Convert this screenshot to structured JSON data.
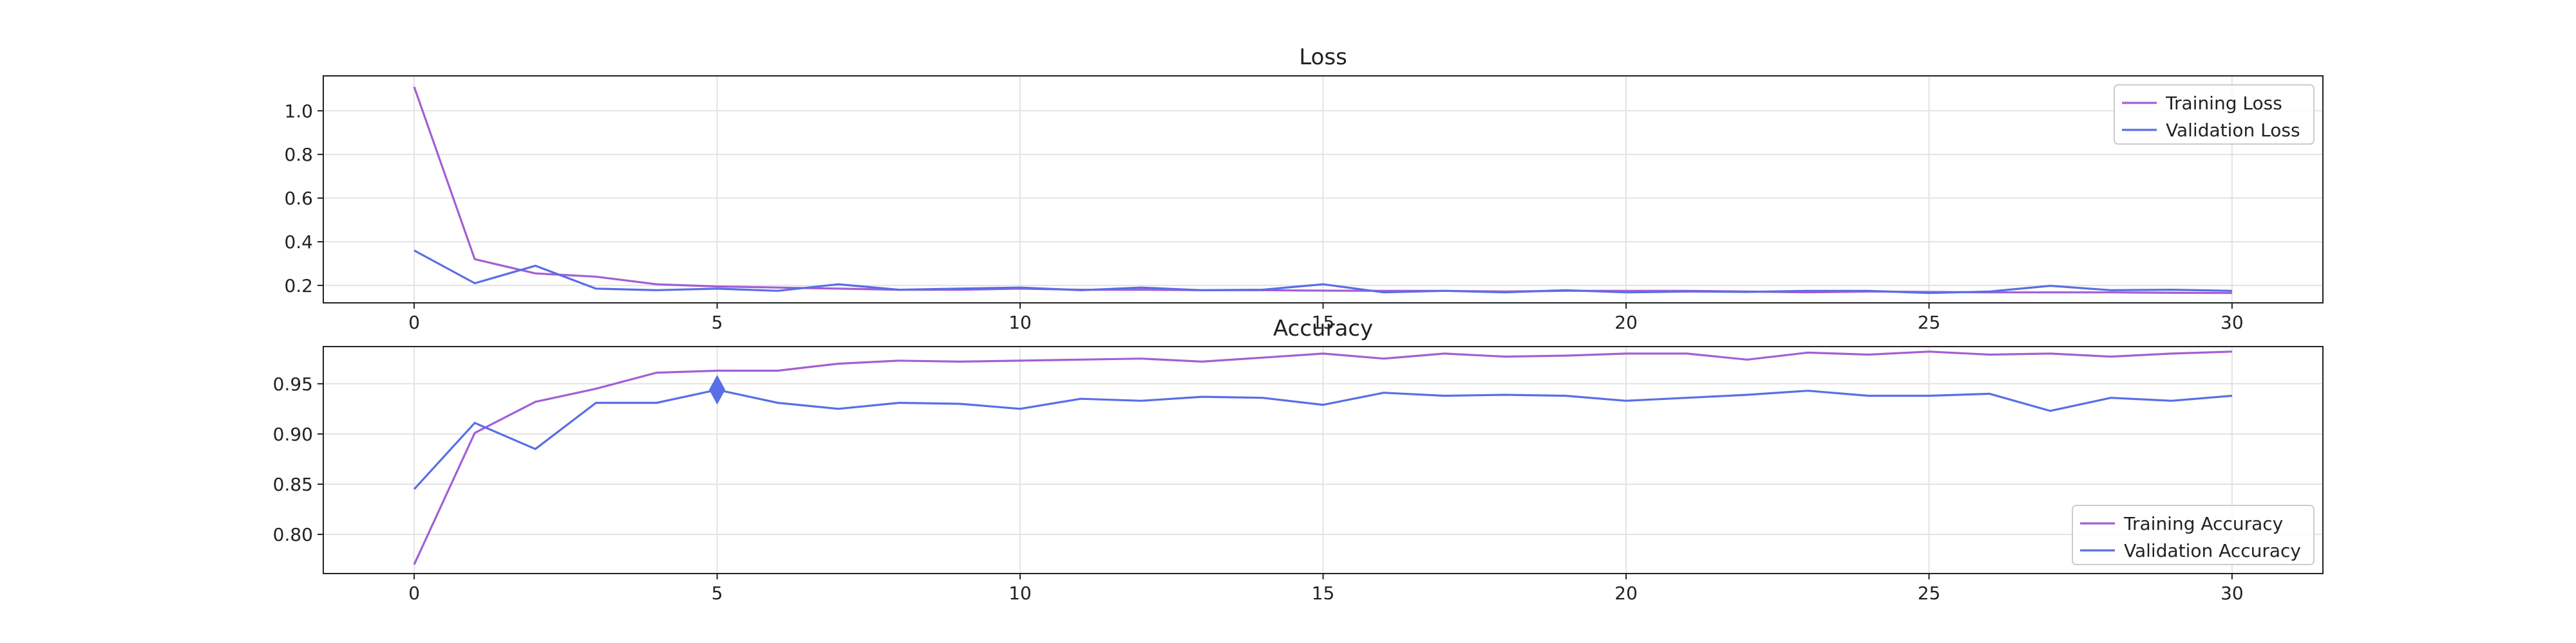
{
  "colors": {
    "training": "#a35fd4",
    "validation": "#5a6ee6",
    "grid": "#e3e3e3",
    "axis": "#222222"
  },
  "chart_data": [
    {
      "type": "line",
      "title": "Loss",
      "xlabel": "",
      "ylabel": "",
      "x": [
        0,
        1,
        2,
        3,
        4,
        5,
        6,
        7,
        8,
        9,
        10,
        11,
        12,
        13,
        14,
        15,
        16,
        17,
        18,
        19,
        20,
        21,
        22,
        23,
        24,
        25,
        26,
        27,
        28,
        29,
        30
      ],
      "xlim": [
        -1.5,
        31.5
      ],
      "ylim": [
        0.12,
        1.16
      ],
      "xticks": [
        "0",
        "5",
        "10",
        "15",
        "20",
        "25",
        "30"
      ],
      "yticks": [
        "0.2",
        "0.4",
        "0.6",
        "0.8",
        "1.0"
      ],
      "grid": true,
      "legend_position": "top-right",
      "series": [
        {
          "name": "Training Loss",
          "color_key": "training",
          "values": [
            1.11,
            0.32,
            0.255,
            0.24,
            0.205,
            0.195,
            0.19,
            0.185,
            0.18,
            0.18,
            0.185,
            0.18,
            0.18,
            0.178,
            0.178,
            0.176,
            0.175,
            0.175,
            0.172,
            0.175,
            0.175,
            0.175,
            0.172,
            0.168,
            0.172,
            0.17,
            0.168,
            0.168,
            0.168,
            0.166,
            0.165
          ]
        },
        {
          "name": "Validation Loss",
          "color_key": "validation",
          "values": [
            0.36,
            0.21,
            0.29,
            0.185,
            0.178,
            0.185,
            0.175,
            0.205,
            0.18,
            0.185,
            0.19,
            0.178,
            0.19,
            0.178,
            0.18,
            0.205,
            0.168,
            0.175,
            0.168,
            0.178,
            0.168,
            0.172,
            0.17,
            0.175,
            0.175,
            0.165,
            0.172,
            0.198,
            0.178,
            0.18,
            0.175
          ]
        }
      ]
    },
    {
      "type": "line",
      "title": "Accuracy",
      "xlabel": "",
      "ylabel": "",
      "x": [
        0,
        1,
        2,
        3,
        4,
        5,
        6,
        7,
        8,
        9,
        10,
        11,
        12,
        13,
        14,
        15,
        16,
        17,
        18,
        19,
        20,
        21,
        22,
        23,
        24,
        25,
        26,
        27,
        28,
        29,
        30
      ],
      "xlim": [
        -1.5,
        31.5
      ],
      "ylim": [
        0.761,
        0.987
      ],
      "xticks": [
        "0",
        "5",
        "10",
        "15",
        "20",
        "25",
        "30"
      ],
      "yticks": [
        "0.80",
        "0.85",
        "0.90",
        "0.95"
      ],
      "grid": true,
      "legend_position": "bottom-right",
      "marker": {
        "series_index": 1,
        "point_index": 5,
        "shape": "diamond"
      },
      "series": [
        {
          "name": "Training Accuracy",
          "color_key": "training",
          "values": [
            0.77,
            0.901,
            0.932,
            0.945,
            0.961,
            0.963,
            0.963,
            0.97,
            0.973,
            0.972,
            0.973,
            0.974,
            0.975,
            0.972,
            0.976,
            0.98,
            0.975,
            0.98,
            0.977,
            0.978,
            0.98,
            0.98,
            0.974,
            0.981,
            0.979,
            0.982,
            0.979,
            0.98,
            0.977,
            0.98,
            0.982
          ]
        },
        {
          "name": "Validation Accuracy",
          "color_key": "validation",
          "values": [
            0.845,
            0.911,
            0.885,
            0.931,
            0.931,
            0.944,
            0.931,
            0.925,
            0.931,
            0.93,
            0.925,
            0.935,
            0.933,
            0.937,
            0.936,
            0.929,
            0.941,
            0.938,
            0.939,
            0.938,
            0.933,
            0.936,
            0.939,
            0.943,
            0.938,
            0.938,
            0.94,
            0.923,
            0.936,
            0.933,
            0.938
          ]
        }
      ]
    }
  ]
}
